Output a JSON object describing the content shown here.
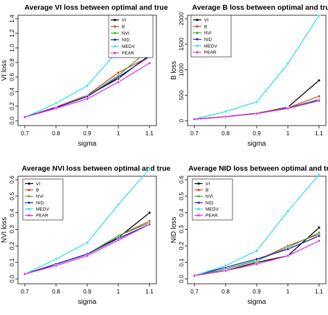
{
  "chart_data": [
    {
      "type": "line",
      "title": "Average VI loss between optimal and true",
      "xlabel": "sigma",
      "ylabel": "VI loss",
      "x": [
        0.7,
        0.8,
        0.9,
        1,
        1.1
      ],
      "xticks": [
        "0.7",
        "0.8",
        "0.9",
        "1",
        "1.1"
      ],
      "ylim": [
        0,
        1.4
      ],
      "yticks": [
        0.0,
        0.2,
        0.4,
        0.6,
        0.8,
        1.0,
        1.2,
        1.4
      ],
      "ytick_labels": [
        "0.0",
        "0.2",
        "0.4",
        "0.6",
        "0.8",
        "1.0",
        "1.2",
        "1.4"
      ],
      "legend_position": "top-right",
      "series": [
        {
          "name": "VI",
          "color": "#000000",
          "values": [
            0.05,
            0.18,
            0.34,
            0.58,
            0.9
          ]
        },
        {
          "name": "B",
          "color": "#e8382d",
          "values": [
            0.05,
            0.19,
            0.35,
            0.66,
            0.88
          ]
        },
        {
          "name": "NVI",
          "color": "#2db52d",
          "values": [
            0.05,
            0.18,
            0.34,
            0.62,
            0.98
          ]
        },
        {
          "name": "NID",
          "color": "#1f1fc8",
          "values": [
            0.05,
            0.18,
            0.33,
            0.6,
            0.88
          ]
        },
        {
          "name": "MEDV",
          "color": "#2fe0f0",
          "values": [
            0.05,
            0.24,
            0.48,
            0.97,
            1.39
          ]
        },
        {
          "name": "PEAR",
          "color": "#e62be6",
          "values": [
            0.05,
            0.17,
            0.3,
            0.53,
            0.79
          ]
        }
      ]
    },
    {
      "type": "line",
      "title": "Average B loss between optimal and true",
      "xlabel": "sigma",
      "ylabel": "B loss",
      "x": [
        0.7,
        0.8,
        0.9,
        1,
        1.1
      ],
      "xticks": [
        "0.7",
        "0.8",
        "0.9",
        "1",
        "1.1"
      ],
      "ylim": [
        0,
        2000
      ],
      "yticks": [
        0,
        500,
        1000,
        1500,
        2000
      ],
      "ytick_labels": [
        "0",
        "500",
        "1000",
        "1500",
        "2000"
      ],
      "legend_position": "top-left",
      "series": [
        {
          "name": "VI",
          "color": "#000000",
          "values": [
            30,
            80,
            145,
            265,
            790
          ]
        },
        {
          "name": "B",
          "color": "#e8382d",
          "values": [
            30,
            80,
            150,
            255,
            480
          ]
        },
        {
          "name": "NVI",
          "color": "#2db52d",
          "values": [
            30,
            80,
            145,
            250,
            420
          ]
        },
        {
          "name": "NID",
          "color": "#1f1fc8",
          "values": [
            30,
            80,
            140,
            245,
            400
          ]
        },
        {
          "name": "MEDV",
          "color": "#2fe0f0",
          "values": [
            30,
            180,
            370,
            1120,
            2060
          ]
        },
        {
          "name": "PEAR",
          "color": "#e62be6",
          "values": [
            30,
            80,
            140,
            240,
            390
          ]
        }
      ]
    },
    {
      "type": "line",
      "title": "Average NVI loss between optimal and true",
      "xlabel": "sigma",
      "ylabel": "NVI loss",
      "x": [
        0.7,
        0.8,
        0.9,
        1,
        1.1
      ],
      "xticks": [
        "0.7",
        "0.8",
        "0.9",
        "1",
        "1.1"
      ],
      "ylim": [
        0,
        0.6
      ],
      "yticks": [
        0.0,
        0.1,
        0.2,
        0.3,
        0.4,
        0.5,
        0.6
      ],
      "ytick_labels": [
        "0.0",
        "0.1",
        "0.2",
        "0.3",
        "0.4",
        "0.5",
        "0.6"
      ],
      "legend_position": "top-left",
      "series": [
        {
          "name": "VI",
          "color": "#000000",
          "values": [
            0.03,
            0.09,
            0.15,
            0.25,
            0.4
          ]
        },
        {
          "name": "B",
          "color": "#e8382d",
          "values": [
            0.03,
            0.09,
            0.15,
            0.26,
            0.35
          ]
        },
        {
          "name": "NVI",
          "color": "#2db52d",
          "values": [
            0.03,
            0.09,
            0.15,
            0.26,
            0.34
          ]
        },
        {
          "name": "NID",
          "color": "#1f1fc8",
          "values": [
            0.03,
            0.09,
            0.15,
            0.245,
            0.33
          ]
        },
        {
          "name": "MEDV",
          "color": "#2fe0f0",
          "values": [
            0.03,
            0.12,
            0.22,
            0.45,
            0.665
          ]
        },
        {
          "name": "PEAR",
          "color": "#e62be6",
          "values": [
            0.03,
            0.08,
            0.14,
            0.235,
            0.33
          ]
        }
      ]
    },
    {
      "type": "line",
      "title": "Average NID loss between optimal and true",
      "xlabel": "sigma",
      "ylabel": "NID loss",
      "x": [
        0.7,
        0.8,
        0.9,
        1,
        1.1
      ],
      "xticks": [
        "0.7",
        "0.8",
        "0.9",
        "1",
        "1.1"
      ],
      "ylim": [
        0,
        0.6
      ],
      "yticks": [
        0.0,
        0.1,
        0.2,
        0.3,
        0.4,
        0.5,
        0.6
      ],
      "ytick_labels": [
        "0.0",
        "0.1",
        "0.2",
        "0.3",
        "0.4",
        "0.5",
        "0.6"
      ],
      "legend_position": "top-left",
      "series": [
        {
          "name": "VI",
          "color": "#000000",
          "values": [
            0.02,
            0.05,
            0.1,
            0.14,
            0.31
          ]
        },
        {
          "name": "B",
          "color": "#e8382d",
          "values": [
            0.02,
            0.06,
            0.11,
            0.2,
            0.27
          ]
        },
        {
          "name": "NVI",
          "color": "#2db52d",
          "values": [
            0.02,
            0.06,
            0.11,
            0.19,
            0.28
          ]
        },
        {
          "name": "NID",
          "color": "#1f1fc8",
          "values": [
            0.02,
            0.07,
            0.12,
            0.18,
            0.26
          ]
        },
        {
          "name": "MEDV",
          "color": "#2fe0f0",
          "values": [
            0.02,
            0.08,
            0.17,
            0.41,
            0.63
          ]
        },
        {
          "name": "PEAR",
          "color": "#e62be6",
          "values": [
            0.02,
            0.05,
            0.09,
            0.14,
            0.23
          ]
        }
      ]
    }
  ]
}
